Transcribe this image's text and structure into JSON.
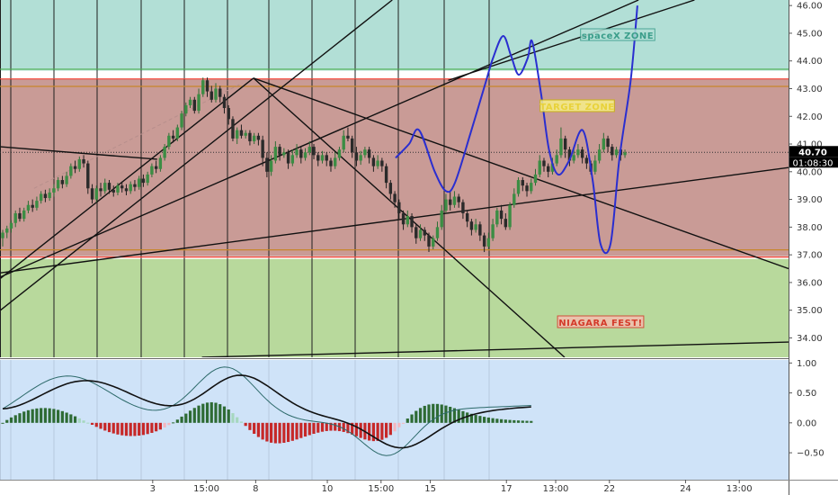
{
  "chart_data": {
    "type": "candlestick",
    "price_axis": {
      "ticks": [
        "46.00",
        "45.00",
        "44.00",
        "43.00",
        "42.00",
        "41.00",
        "40.00",
        "39.00",
        "38.00",
        "37.00",
        "36.00",
        "35.00",
        "34.00"
      ],
      "range": [
        33.3,
        46.2
      ],
      "last_price": "40.70",
      "countdown": "01:08:30"
    },
    "osc_axis": {
      "ticks": [
        "1.00",
        "0.50",
        "0.00",
        "−0.50"
      ],
      "range": [
        -0.95,
        1.05
      ]
    },
    "time_axis": {
      "labels": [
        {
          "t": "3",
          "x": 6.8
        },
        {
          "t": "15:00",
          "x": 9.2
        },
        {
          "t": "8",
          "x": 11.4
        },
        {
          "t": "10",
          "x": 14.6
        },
        {
          "t": "15:00",
          "x": 17
        },
        {
          "t": "15",
          "x": 19.2
        },
        {
          "t": "17",
          "x": 22.6
        },
        {
          "t": "13:00",
          "x": 24.8
        },
        {
          "t": "22",
          "x": 27.2
        },
        {
          "t": "24",
          "x": 30.6
        },
        {
          "t": "13:00",
          "x": 33
        }
      ]
    },
    "zones": [
      {
        "label": "spaceX ZONE",
        "from": 43.65,
        "to": 46.2,
        "color": "#b2dfd6"
      },
      {
        "label": "TARGET ZONE",
        "from": 36.95,
        "to": 43.35,
        "color": "#c99b96"
      },
      {
        "label": "NIAGARA FEST!",
        "from": 33.3,
        "to": 36.85,
        "color": "#b8d99c"
      }
    ],
    "levels": [
      {
        "price": 43.7,
        "color": "#4caf50"
      },
      {
        "price": 43.35,
        "color": "#f44336"
      },
      {
        "price": 43.08,
        "color": "#c8862a"
      },
      {
        "price": 37.18,
        "color": "#c8862a"
      },
      {
        "price": 36.92,
        "color": "#f44336"
      }
    ],
    "trendlines": [
      {
        "x1": 0,
        "y1": 40.9,
        "x2": 7,
        "y2": 40.45
      },
      {
        "x1": 0,
        "y1": 36.2,
        "x2": 28.5,
        "y2": 46.2
      },
      {
        "x1": 0,
        "y1": 35.0,
        "x2": 17.5,
        "y2": 46.2
      },
      {
        "x1": 0,
        "y1": 36.15,
        "x2": 11.3,
        "y2": 43.38
      },
      {
        "x1": 11.3,
        "y1": 43.38,
        "x2": 25.2,
        "y2": 33.3
      },
      {
        "x1": 11.3,
        "y1": 43.38,
        "x2": 35.2,
        "y2": 36.5
      },
      {
        "x1": 0,
        "y1": 36.35,
        "x2": 35.2,
        "y2": 40.15
      },
      {
        "x1": 9,
        "y1": 33.3,
        "x2": 35.2,
        "y2": 33.85
      },
      {
        "x1": 20,
        "y1": 43.3,
        "x2": 31,
        "y2": 46.2
      }
    ],
    "projection": [
      [
        17.65,
        40.5
      ],
      [
        18.25,
        41.0
      ],
      [
        18.7,
        41.5
      ],
      [
        19.4,
        40.0
      ],
      [
        19.9,
        39.3
      ],
      [
        20.3,
        39.6
      ],
      [
        21,
        41.4
      ],
      [
        21.7,
        43.3
      ],
      [
        22.0,
        44.1
      ],
      [
        22.45,
        44.9
      ],
      [
        22.8,
        44.2
      ],
      [
        23.15,
        43.5
      ],
      [
        23.55,
        44.1
      ],
      [
        23.75,
        44.7
      ],
      [
        24.15,
        42.8
      ],
      [
        24.5,
        40.8
      ],
      [
        24.9,
        39.9
      ],
      [
        25.4,
        40.4
      ],
      [
        26,
        41.5
      ],
      [
        26.45,
        39.7
      ],
      [
        26.8,
        37.4
      ],
      [
        27.25,
        37.4
      ],
      [
        27.65,
        40.5
      ],
      [
        28.15,
        43.3
      ],
      [
        28.45,
        46.0
      ]
    ],
    "candles": [
      [
        37.6,
        37.8,
        37.3,
        37.9
      ],
      [
        37.8,
        37.95,
        37.6,
        38.05
      ],
      [
        37.95,
        38.15,
        37.8,
        38.25
      ],
      [
        38.15,
        38.5,
        38.0,
        38.6
      ],
      [
        38.5,
        38.3,
        38.2,
        38.7
      ],
      [
        38.3,
        38.6,
        38.2,
        38.7
      ],
      [
        38.6,
        38.8,
        38.5,
        38.95
      ],
      [
        38.8,
        38.7,
        38.55,
        39.0
      ],
      [
        38.7,
        38.95,
        38.6,
        39.1
      ],
      [
        38.95,
        39.2,
        38.85,
        39.3
      ],
      [
        39.2,
        39.05,
        38.9,
        39.35
      ],
      [
        39.05,
        39.25,
        38.95,
        39.4
      ],
      [
        39.25,
        39.4,
        39.1,
        39.55
      ],
      [
        39.4,
        39.7,
        39.3,
        39.8
      ],
      [
        39.7,
        39.55,
        39.4,
        39.85
      ],
      [
        39.55,
        39.85,
        39.45,
        40.0
      ],
      [
        39.85,
        40.2,
        39.75,
        40.3
      ],
      [
        40.2,
        40.1,
        39.95,
        40.4
      ],
      [
        40.1,
        40.45,
        40.0,
        40.55
      ],
      [
        40.45,
        40.3,
        40.15,
        40.6
      ],
      [
        40.3,
        39.4,
        39.2,
        40.4
      ],
      [
        39.4,
        39.0,
        38.85,
        39.55
      ],
      [
        39.0,
        39.4,
        38.9,
        39.5
      ],
      [
        39.4,
        39.3,
        39.1,
        39.6
      ],
      [
        39.3,
        39.6,
        39.2,
        39.75
      ],
      [
        39.6,
        39.35,
        39.2,
        39.7
      ],
      [
        39.35,
        39.25,
        39.1,
        39.5
      ],
      [
        39.25,
        39.5,
        39.15,
        39.6
      ],
      [
        39.5,
        39.4,
        39.25,
        39.65
      ],
      [
        39.4,
        39.3,
        39.15,
        39.55
      ],
      [
        39.3,
        39.55,
        39.2,
        39.65
      ],
      [
        39.55,
        39.45,
        39.3,
        39.7
      ],
      [
        39.45,
        39.75,
        39.35,
        39.85
      ],
      [
        39.75,
        39.6,
        39.45,
        39.9
      ],
      [
        39.6,
        39.9,
        39.5,
        40.0
      ],
      [
        39.9,
        40.2,
        39.8,
        40.3
      ],
      [
        40.2,
        40.1,
        39.95,
        40.4
      ],
      [
        40.1,
        40.5,
        40.0,
        40.6
      ],
      [
        40.5,
        40.9,
        40.4,
        41.0
      ],
      [
        40.9,
        41.3,
        40.8,
        41.4
      ],
      [
        41.3,
        41.2,
        41.05,
        41.5
      ],
      [
        41.2,
        41.6,
        41.1,
        41.7
      ],
      [
        41.6,
        42.1,
        41.5,
        42.2
      ],
      [
        42.1,
        42.4,
        42.0,
        42.5
      ],
      [
        42.4,
        42.6,
        42.3,
        42.7
      ],
      [
        42.6,
        42.2,
        42.1,
        42.7
      ],
      [
        42.2,
        42.8,
        42.1,
        43.0
      ],
      [
        42.8,
        43.3,
        42.7,
        43.4
      ],
      [
        43.3,
        42.9,
        42.7,
        43.4
      ],
      [
        42.9,
        42.6,
        42.5,
        43.1
      ],
      [
        42.6,
        43.0,
        42.5,
        43.2
      ],
      [
        43.0,
        42.7,
        42.5,
        43.1
      ],
      [
        42.7,
        42.3,
        42.1,
        42.8
      ],
      [
        42.3,
        41.9,
        41.7,
        42.4
      ],
      [
        41.9,
        41.2,
        41.1,
        42.0
      ],
      [
        41.2,
        41.5,
        41.0,
        41.6
      ],
      [
        41.5,
        41.3,
        41.2,
        41.7
      ],
      [
        41.3,
        41.4,
        41.2,
        41.5
      ],
      [
        41.4,
        41.1,
        40.95,
        41.5
      ],
      [
        41.1,
        41.3,
        41.0,
        41.4
      ],
      [
        41.3,
        41.15,
        40.95,
        41.4
      ],
      [
        41.15,
        40.5,
        40.2,
        41.3
      ],
      [
        40.5,
        40.0,
        39.8,
        40.7
      ],
      [
        40.0,
        40.4,
        39.85,
        40.6
      ],
      [
        40.4,
        40.9,
        40.3,
        41.1
      ],
      [
        40.9,
        40.6,
        40.4,
        41.0
      ],
      [
        40.6,
        40.7,
        40.5,
        40.85
      ],
      [
        40.7,
        40.3,
        40.1,
        40.8
      ],
      [
        40.3,
        40.6,
        40.2,
        40.8
      ],
      [
        40.6,
        40.8,
        40.5,
        41.0
      ],
      [
        40.8,
        40.5,
        40.3,
        40.9
      ],
      [
        40.5,
        40.7,
        40.4,
        40.85
      ],
      [
        40.7,
        40.9,
        40.6,
        41.1
      ],
      [
        40.9,
        40.6,
        40.45,
        41.0
      ],
      [
        40.6,
        40.4,
        40.2,
        40.7
      ],
      [
        40.4,
        40.6,
        40.3,
        40.75
      ],
      [
        40.6,
        40.4,
        40.2,
        40.7
      ],
      [
        40.4,
        40.2,
        40.0,
        40.5
      ],
      [
        40.2,
        40.5,
        40.1,
        40.7
      ],
      [
        40.5,
        40.8,
        40.4,
        40.9
      ],
      [
        40.8,
        41.3,
        40.7,
        41.5
      ],
      [
        41.3,
        41.2,
        41.1,
        41.6
      ],
      [
        41.2,
        40.7,
        40.5,
        41.3
      ],
      [
        40.7,
        40.4,
        40.2,
        40.9
      ],
      [
        40.4,
        40.6,
        40.25,
        40.75
      ],
      [
        40.6,
        40.8,
        40.5,
        40.9
      ],
      [
        40.8,
        40.5,
        40.3,
        40.9
      ],
      [
        40.5,
        40.2,
        40.0,
        40.6
      ],
      [
        40.2,
        40.4,
        40.1,
        40.6
      ],
      [
        40.4,
        40.2,
        40.0,
        40.5
      ],
      [
        40.2,
        39.6,
        39.4,
        40.3
      ],
      [
        39.6,
        39.2,
        39.0,
        39.7
      ],
      [
        39.2,
        38.9,
        38.7,
        39.3
      ],
      [
        38.9,
        38.5,
        38.3,
        39.0
      ],
      [
        38.5,
        38.1,
        37.9,
        38.6
      ],
      [
        38.1,
        38.4,
        38.0,
        38.6
      ],
      [
        38.4,
        38.0,
        37.8,
        38.5
      ],
      [
        38.0,
        37.6,
        37.4,
        38.1
      ],
      [
        37.6,
        37.9,
        37.5,
        38.1
      ],
      [
        37.9,
        37.7,
        37.5,
        38.0
      ],
      [
        37.7,
        37.3,
        37.1,
        37.8
      ],
      [
        37.3,
        37.6,
        37.2,
        37.7
      ],
      [
        37.6,
        38.0,
        37.5,
        38.2
      ],
      [
        38.0,
        38.6,
        37.9,
        38.8
      ],
      [
        38.6,
        39.0,
        38.5,
        39.2
      ],
      [
        39.0,
        38.8,
        38.6,
        39.3
      ],
      [
        38.8,
        39.1,
        38.7,
        39.3
      ],
      [
        39.1,
        38.9,
        38.7,
        39.2
      ],
      [
        38.9,
        38.5,
        38.3,
        39.0
      ],
      [
        38.5,
        38.2,
        38.0,
        38.6
      ],
      [
        38.2,
        37.9,
        37.7,
        38.3
      ],
      [
        37.9,
        38.1,
        37.8,
        38.3
      ],
      [
        38.1,
        37.7,
        37.5,
        38.2
      ],
      [
        37.7,
        37.3,
        37.1,
        37.8
      ],
      [
        37.3,
        37.6,
        37.2,
        37.8
      ],
      [
        37.6,
        38.1,
        37.5,
        38.3
      ],
      [
        38.1,
        38.6,
        38.0,
        38.7
      ],
      [
        38.6,
        38.3,
        38.1,
        38.8
      ],
      [
        38.3,
        38.0,
        37.9,
        38.5
      ],
      [
        38.0,
        38.8,
        37.9,
        38.9
      ],
      [
        38.8,
        39.2,
        38.7,
        39.4
      ],
      [
        39.2,
        39.7,
        39.1,
        39.8
      ],
      [
        39.7,
        39.5,
        39.3,
        39.8
      ],
      [
        39.5,
        39.3,
        39.1,
        39.6
      ],
      [
        39.3,
        39.6,
        39.2,
        39.75
      ],
      [
        39.6,
        39.9,
        39.5,
        40.1
      ],
      [
        39.9,
        40.4,
        39.8,
        40.6
      ],
      [
        40.4,
        40.2,
        40.0,
        40.5
      ],
      [
        40.2,
        40.0,
        39.8,
        40.3
      ],
      [
        40.0,
        40.3,
        39.9,
        40.5
      ],
      [
        40.3,
        40.6,
        40.2,
        40.8
      ],
      [
        40.6,
        41.2,
        40.5,
        41.6
      ],
      [
        41.2,
        40.8,
        40.5,
        41.3
      ],
      [
        40.8,
        40.4,
        40.2,
        40.9
      ],
      [
        40.4,
        40.6,
        40.3,
        40.8
      ],
      [
        40.6,
        40.8,
        40.5,
        41.0
      ],
      [
        40.8,
        40.5,
        40.3,
        40.9
      ],
      [
        40.5,
        40.3,
        40.1,
        40.6
      ],
      [
        40.3,
        40.0,
        39.9,
        40.4
      ],
      [
        40.0,
        40.4,
        39.9,
        40.6
      ],
      [
        40.4,
        40.8,
        40.3,
        41.0
      ],
      [
        40.8,
        41.2,
        40.7,
        41.4
      ],
      [
        41.2,
        40.9,
        40.7,
        41.3
      ],
      [
        40.9,
        40.6,
        40.4,
        41.0
      ],
      [
        40.6,
        40.8,
        40.5,
        40.9
      ],
      [
        40.8,
        40.6,
        40.4,
        40.9
      ],
      [
        40.6,
        40.7,
        40.5,
        40.8
      ]
    ]
  }
}
